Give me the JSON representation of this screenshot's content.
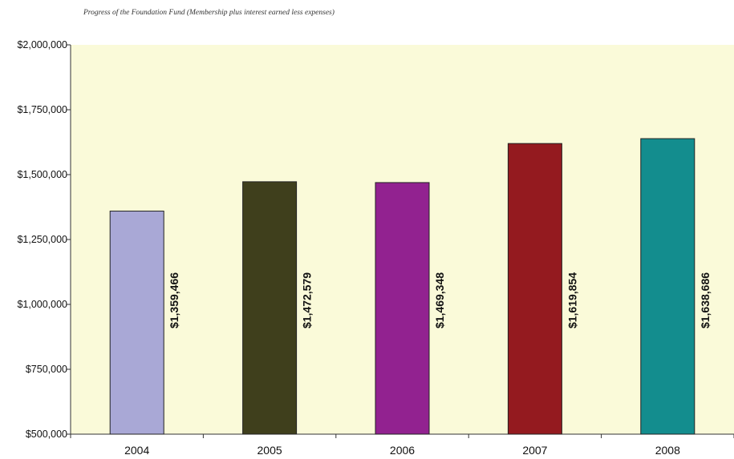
{
  "chart_data": {
    "type": "bar",
    "title": "Progress of the Foundation Fund (Membership plus interest earned less expenses)",
    "categories": [
      "2004",
      "2005",
      "2006",
      "2007",
      "2008"
    ],
    "values": [
      1359466,
      1472579,
      1469348,
      1619854,
      1638686
    ],
    "value_labels": [
      "$1,359,466",
      "$1,472,579",
      "$1,469,348",
      "$1,619,854",
      "$1,638,686"
    ],
    "y_ticks": [
      "$500,000",
      "$750,000",
      "$1,000,000",
      "$1,250,000",
      "$1,500,000",
      "$1,750,000",
      "$2,000,000"
    ],
    "ylim": [
      500000,
      2000000
    ],
    "bar_colors": [
      "#a9a8d6",
      "#3f3f1c",
      "#922290",
      "#941a1f",
      "#138d8e"
    ],
    "plot_background": "#fafad9",
    "xlabel": "",
    "ylabel": "",
    "grid": false,
    "legend": "none"
  }
}
